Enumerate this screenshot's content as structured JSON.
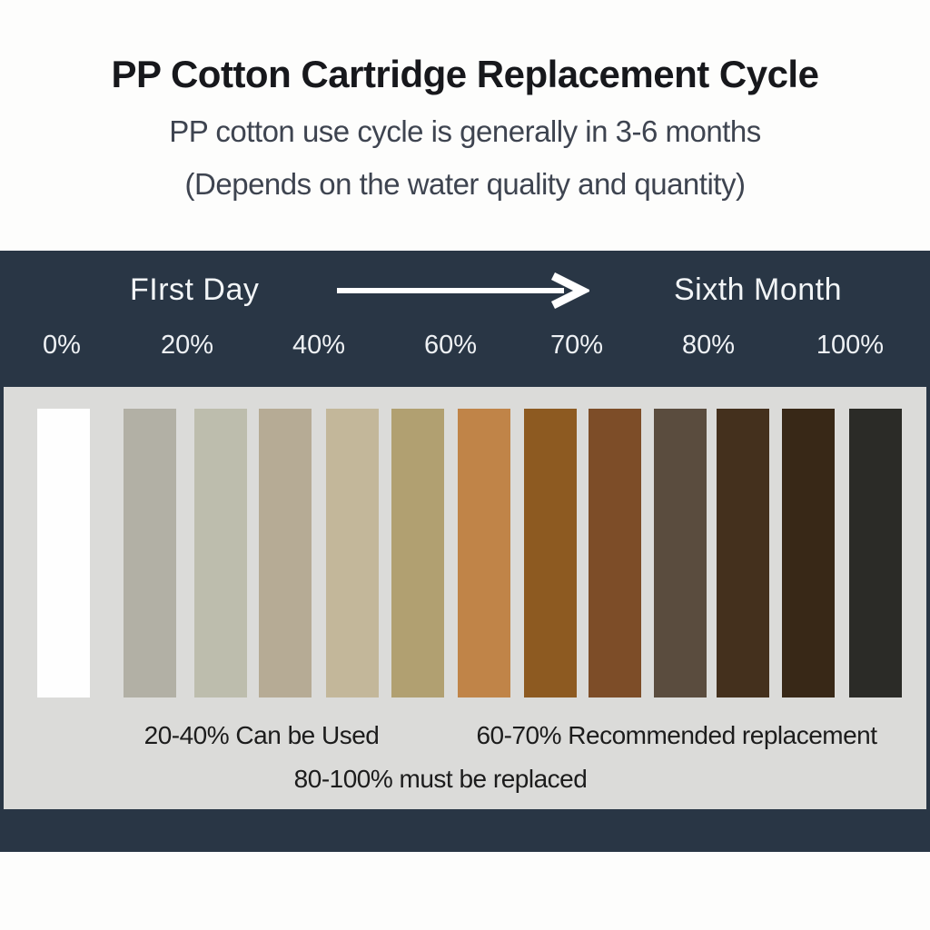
{
  "header": {
    "title": "PP Cotton Cartridge Replacement Cycle",
    "subtitle_line1": "PP cotton use cycle is generally in 3-6 months",
    "subtitle_line2": "(Depends on the water quality and quantity)"
  },
  "timeline": {
    "start_label": "FIrst Day",
    "end_label": "Sixth Month",
    "percent_labels": [
      "0%",
      "20%",
      "40%",
      "60%",
      "70%",
      "80%",
      "100%"
    ]
  },
  "swatches": {
    "description": "cartridge color from new (white) to fully used (near black)",
    "colors": [
      "#fefefe",
      "#b2b0a5",
      "#bdbdad",
      "#b6ab95",
      "#c3b79a",
      "#b1a071",
      "#c08448",
      "#8d5a21",
      "#7d4d28",
      "#5a4c3e",
      "#44301d",
      "#382817",
      "#2b2b27"
    ]
  },
  "notes": {
    "can_be_used": "20-40% Can be Used",
    "recommended": "60-70% Recommended replacement",
    "must_replace": "80-100% must be replaced"
  },
  "colors": {
    "band_navy": "#293645",
    "panel_gray": "#dbdbd9",
    "title_text": "#17181c",
    "subtitle_text": "#3e4450",
    "band_text": "#f2f5f7",
    "note_text": "#1c1c1c"
  }
}
